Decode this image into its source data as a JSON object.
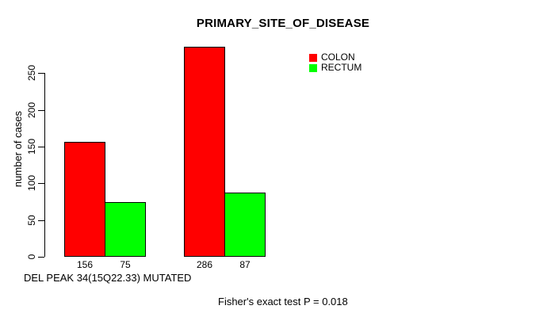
{
  "chart_data": {
    "type": "bar",
    "title": "PRIMARY_SITE_OF_DISEASE",
    "ylabel": "number of cases",
    "xlabel": "DEL PEAK 34(15Q22.33) MUTATED",
    "annotation": "Fisher's exact test P = 0.018",
    "categories": [
      "",
      ""
    ],
    "series": [
      {
        "name": "COLON",
        "color": "#ff0000",
        "values": [
          156,
          286
        ]
      },
      {
        "name": "RECTUM",
        "color": "#00ff00",
        "values": [
          75,
          87
        ]
      }
    ],
    "bar_value_labels": [
      [
        "156",
        "75"
      ],
      [
        "286",
        "87"
      ]
    ],
    "yticks": [
      0,
      50,
      100,
      150,
      200,
      250
    ],
    "ylim": [
      0,
      290
    ],
    "grid": false,
    "legend": {
      "position": "top-right",
      "entries": [
        {
          "label": "COLON",
          "color": "#ff0000"
        },
        {
          "label": "RECTUM",
          "color": "#00ff00"
        }
      ]
    },
    "colors": {
      "bar_border": "#000000",
      "axis": "#000000",
      "text": "#000000",
      "background": "#ffffff"
    }
  }
}
